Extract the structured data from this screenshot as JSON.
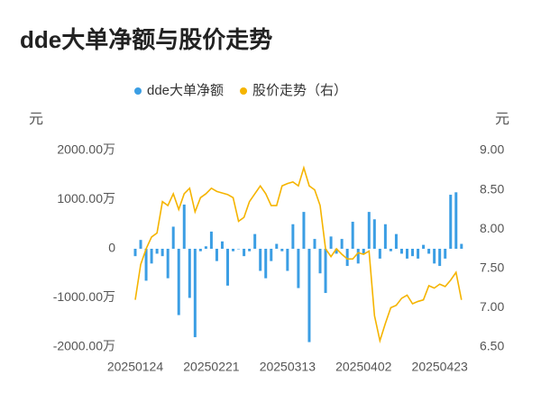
{
  "chart_data": {
    "type": "bar-line",
    "title": "dde大单净额与股价走势",
    "y_unit": "元",
    "y2_unit": "元",
    "categories": [
      "20250124",
      null,
      null,
      null,
      null,
      null,
      null,
      null,
      null,
      null,
      null,
      null,
      null,
      null,
      "20250221",
      null,
      null,
      null,
      null,
      null,
      null,
      null,
      null,
      null,
      null,
      null,
      null,
      null,
      "20250313",
      null,
      null,
      null,
      null,
      null,
      null,
      null,
      null,
      null,
      null,
      null,
      null,
      null,
      "20250402",
      null,
      null,
      null,
      null,
      null,
      null,
      null,
      null,
      null,
      null,
      null,
      null,
      null,
      "20250423",
      null,
      null,
      null,
      null
    ],
    "series": [
      {
        "name": "dde大单净额",
        "type": "bar",
        "color": "#3b9ee4",
        "values": [
          -150,
          180,
          -650,
          -300,
          -100,
          -150,
          -600,
          450,
          -1350,
          900,
          -1000,
          -1800,
          -50,
          50,
          350,
          -250,
          150,
          -750,
          -50,
          0,
          -150,
          -50,
          300,
          -450,
          -600,
          -250,
          100,
          -50,
          -450,
          500,
          -800,
          750,
          -1900,
          200,
          -500,
          -900,
          250,
          -100,
          200,
          -350,
          550,
          -300,
          -100,
          750,
          600,
          -200,
          500,
          -50,
          300,
          -100,
          -200,
          -150,
          -200,
          80,
          -100,
          -300,
          -350,
          -200,
          1100,
          1150,
          100
        ]
      },
      {
        "name": "股价走势（右）",
        "type": "line",
        "axis": "y2",
        "color": "#f5b400",
        "values": [
          7.1,
          7.55,
          7.75,
          7.9,
          7.95,
          8.35,
          8.3,
          8.45,
          8.25,
          8.45,
          8.52,
          8.22,
          8.4,
          8.45,
          8.52,
          8.48,
          8.46,
          8.44,
          8.4,
          8.1,
          8.15,
          8.35,
          8.45,
          8.55,
          8.45,
          8.3,
          8.3,
          8.55,
          8.58,
          8.6,
          8.55,
          8.78,
          8.55,
          8.5,
          8.3,
          7.75,
          7.65,
          7.75,
          7.68,
          7.62,
          7.62,
          7.7,
          7.68,
          7.72,
          6.9,
          6.58,
          6.8,
          7.0,
          7.03,
          7.12,
          7.16,
          7.05,
          7.08,
          7.1,
          7.28,
          7.25,
          7.3,
          7.27,
          7.35,
          7.45,
          7.1
        ]
      }
    ],
    "ylim": [
      -2000,
      2000
    ],
    "yticks": [
      {
        "value": 2000,
        "label": "2000.00万"
      },
      {
        "value": 1000,
        "label": "1000.00万"
      },
      0,
      {
        "value": -1000,
        "label": "-1000.00万"
      },
      {
        "value": -2000,
        "label": "-2000.00万"
      }
    ],
    "y2lim": [
      6.5,
      9
    ],
    "y2ticks": [
      {
        "value": 9,
        "label": "9.00"
      },
      {
        "value": 8.5,
        "label": "8.50"
      },
      {
        "value": 8,
        "label": "8.00"
      },
      {
        "value": 7.5,
        "label": "7.50"
      },
      {
        "value": 7,
        "label": "7.00"
      },
      {
        "value": 6.5,
        "label": "6.50"
      }
    ],
    "grid": false
  }
}
